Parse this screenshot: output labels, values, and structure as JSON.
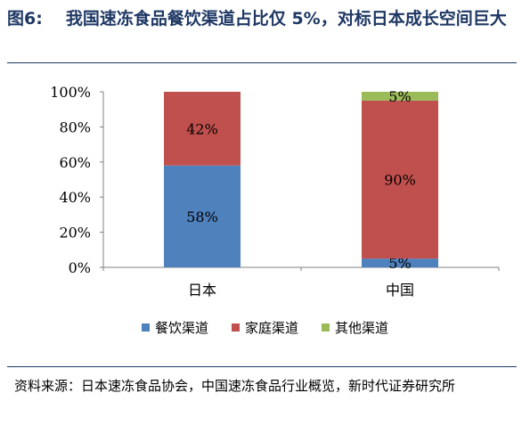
{
  "figure": {
    "label": "图6:",
    "title": "我国速冻食品餐饮渠道占比仅 5%，对标日本成长空间巨大",
    "source": "资料来源：日本速冻食品协会，中国速冻食品行业概览，新时代证券研究所"
  },
  "colors": {
    "series": [
      "#4f81bd",
      "#c0504d",
      "#9bbb59"
    ],
    "title": "#1f3864",
    "axis": "#808080"
  },
  "chart_data": {
    "type": "bar",
    "stacked": true,
    "percent": true,
    "categories": [
      "日本",
      "中国"
    ],
    "series": [
      {
        "name": "餐饮渠道",
        "values": [
          58,
          5
        ]
      },
      {
        "name": "家庭渠道",
        "values": [
          42,
          90
        ]
      },
      {
        "name": "其他渠道",
        "values": [
          0,
          5
        ]
      }
    ],
    "data_labels": [
      [
        "58%",
        "5%"
      ],
      [
        "42%",
        "90%"
      ],
      [
        "",
        "5%"
      ]
    ],
    "yticks": [
      "0%",
      "20%",
      "40%",
      "60%",
      "80%",
      "100%"
    ],
    "ylim": [
      0,
      100
    ],
    "grid": false,
    "legend": "bottom"
  }
}
